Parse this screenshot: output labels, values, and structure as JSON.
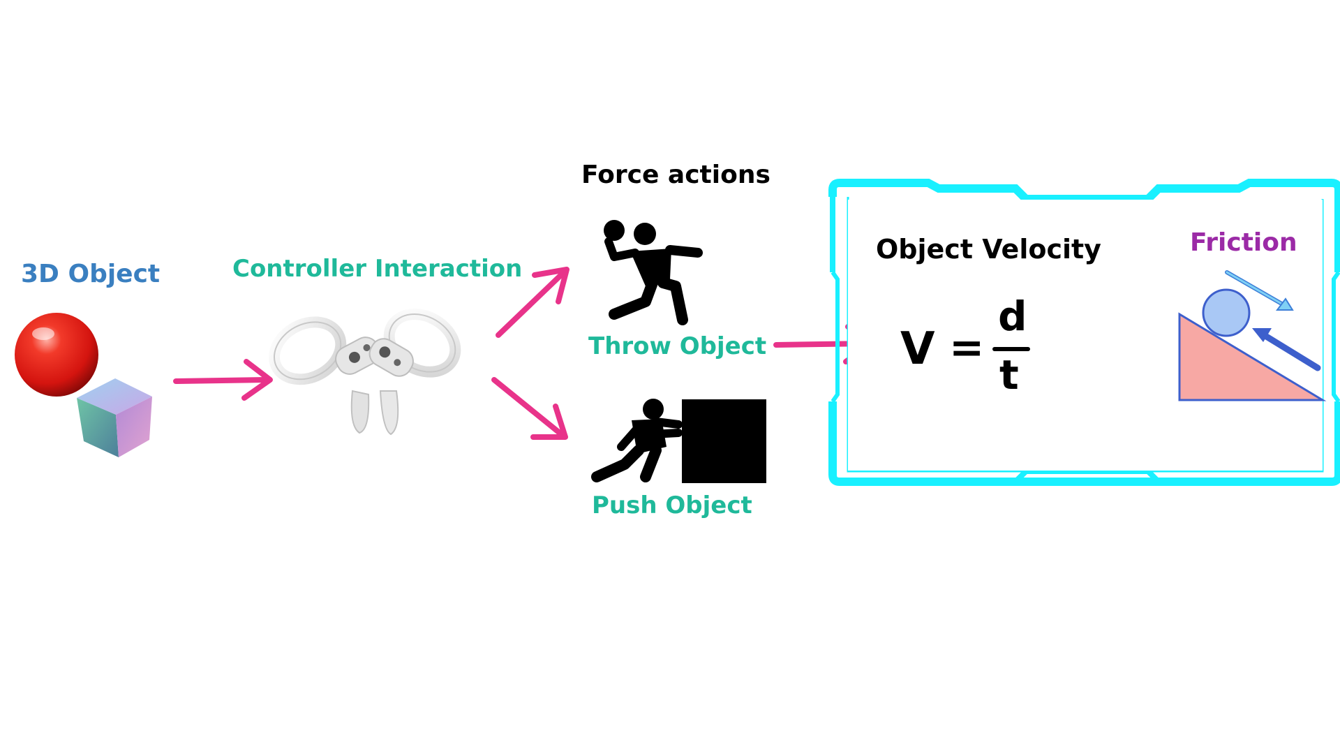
{
  "labels": {
    "object3d": "3D Object",
    "controller": "Controller Interaction",
    "force_actions": "Force actions",
    "throw": "Throw Object",
    "push": "Push Object",
    "velocity_title": "Object Velocity",
    "friction": "Friction"
  },
  "formula": {
    "lhs": "V",
    "eq": "=",
    "numerator": "d",
    "denominator": "t"
  },
  "colors": {
    "arrow": "#e8338a",
    "teal_label": "#1fb99a",
    "blue_label": "#3a7fc0",
    "purple_label": "#9b2aa6",
    "frame": "#19f0ff",
    "ramp": "#f7a8a4",
    "ball": "#a9c8f5",
    "ramp_stroke": "#3d5fcc"
  }
}
